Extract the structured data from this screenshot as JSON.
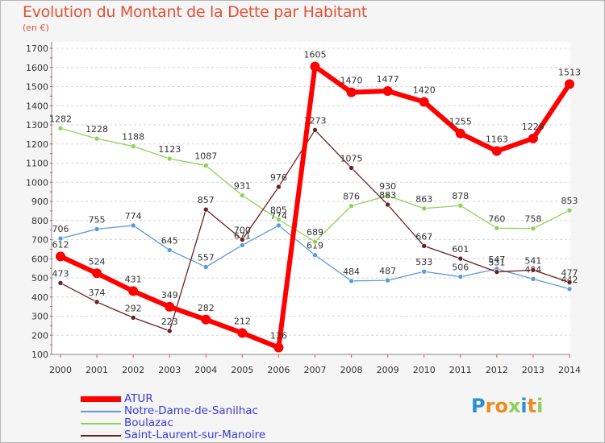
{
  "chart_data": {
    "type": "line",
    "title": "Evolution du Montant de la Dette par Habitant",
    "subtitle": "(en €)",
    "xlabel": "",
    "ylabel": "",
    "ylim": [
      100,
      1700
    ],
    "y_ticks": [
      100,
      200,
      300,
      400,
      500,
      600,
      700,
      800,
      900,
      1000,
      1100,
      1200,
      1300,
      1400,
      1500,
      1600,
      1700
    ],
    "grid": "dashed horizontal",
    "legend_position": "bottom-left",
    "categories": [
      "2000",
      "2001",
      "2002",
      "2003",
      "2004",
      "2005",
      "2006",
      "2007",
      "2008",
      "2009",
      "2010",
      "2011",
      "2012",
      "2013",
      "2014"
    ],
    "series": [
      {
        "name": "Notre-Dame-de-Sanilhac",
        "color": "#5b9bd5",
        "values": [
          706,
          755,
          774,
          645,
          557,
          671,
          774,
          619,
          484,
          487,
          533,
          506,
          547,
          494,
          442
        ]
      },
      {
        "name": "Boulazac",
        "color": "#8fd15b",
        "values": [
          1282,
          1228,
          1188,
          1123,
          1087,
          931,
          805,
          689,
          876,
          930,
          863,
          878,
          760,
          758,
          853
        ]
      },
      {
        "name": "Saint-Laurent-sur-Manoire",
        "color": "#6b1f1f",
        "values": [
          473,
          374,
          292,
          223,
          857,
          700,
          976,
          1273,
          1075,
          883,
          667,
          601,
          531,
          541,
          477
        ]
      },
      {
        "name": "ATUR",
        "color": "#ff0000",
        "values": [
          612,
          524,
          431,
          349,
          282,
          212,
          136,
          1605,
          1470,
          1477,
          1420,
          1255,
          1163,
          1229,
          1513
        ]
      }
    ]
  },
  "logo": {
    "text": "Proxiti"
  }
}
